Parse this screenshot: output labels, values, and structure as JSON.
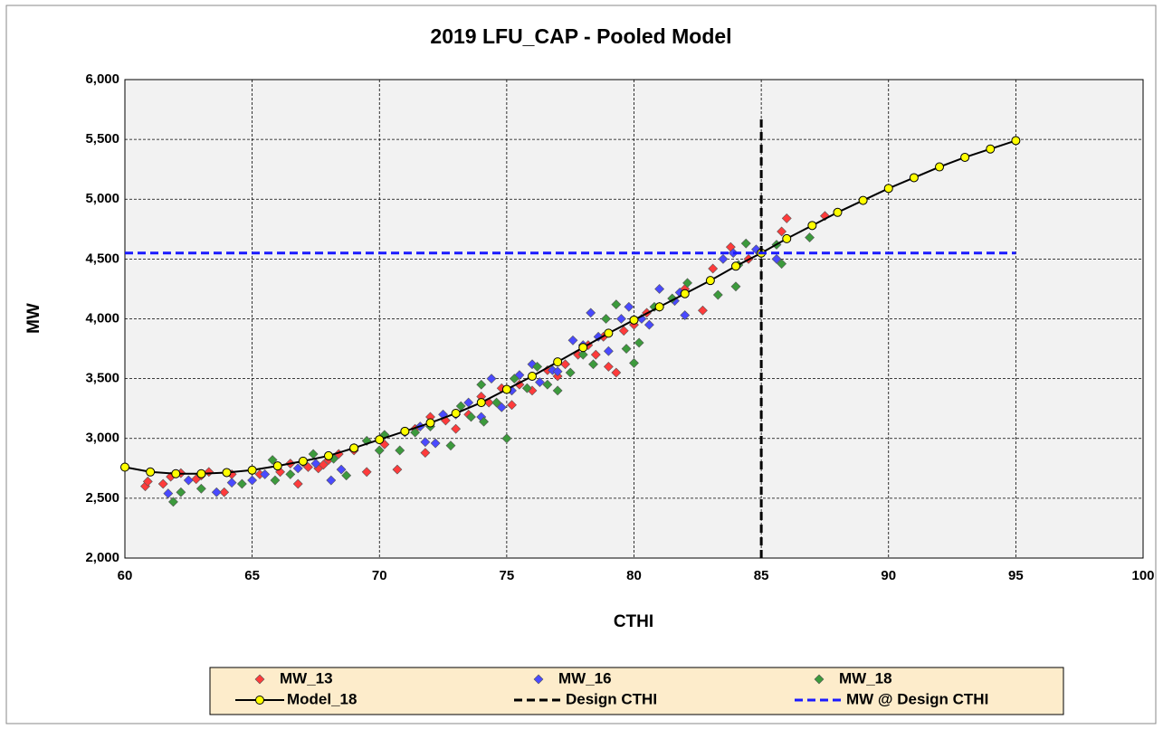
{
  "chart_data": {
    "type": "scatter",
    "title": "2019 LFU_CAP - Pooled Model",
    "x_label": "CTHI",
    "y_label": "MW",
    "xlim": [
      60,
      100
    ],
    "xticks": [
      60,
      65,
      70,
      75,
      80,
      85,
      90,
      95,
      100
    ],
    "ylim": [
      2000,
      6000
    ],
    "yticks": [
      {
        "value": 2000,
        "label": "2,000"
      },
      {
        "value": 2500,
        "label": "2,500"
      },
      {
        "value": 3000,
        "label": "3,000"
      },
      {
        "value": 3500,
        "label": "3,500"
      },
      {
        "value": 4000,
        "label": "4,000"
      },
      {
        "value": 4500,
        "label": "4,500"
      },
      {
        "value": 5000,
        "label": "5,000"
      },
      {
        "value": 5500,
        "label": "5,500"
      },
      {
        "value": 6000,
        "label": "6,000"
      }
    ],
    "grid": true,
    "legend": "bottom",
    "series": [
      {
        "name": "MW_13",
        "kind": "scatter",
        "color": "#ff3b3b",
        "x": [
          60.8,
          60.9,
          61.5,
          61.8,
          62.2,
          62.8,
          63.0,
          63.3,
          63.9,
          64.2,
          65.3,
          66.1,
          66.5,
          66.8,
          67.0,
          67.2,
          67.6,
          67.8,
          68.0,
          68.4,
          69.0,
          69.5,
          70.2,
          70.7,
          71.4,
          71.8,
          72.0,
          72.6,
          73.0,
          73.5,
          74.0,
          74.3,
          74.8,
          75.2,
          75.5,
          76.0,
          76.6,
          77.0,
          77.3,
          77.8,
          78.2,
          78.5,
          78.8,
          79.0,
          79.3,
          79.6,
          80.0,
          80.5,
          81.0,
          82.0,
          82.7,
          83.1,
          83.8,
          84.5,
          85.8,
          86.0,
          87.5
        ],
        "values": [
          2600,
          2640,
          2620,
          2680,
          2710,
          2660,
          2690,
          2720,
          2550,
          2700,
          2700,
          2720,
          2790,
          2620,
          2800,
          2760,
          2750,
          2780,
          2820,
          2870,
          2900,
          2720,
          2950,
          2740,
          3080,
          2880,
          3180,
          3150,
          3080,
          3200,
          3350,
          3300,
          3420,
          3280,
          3450,
          3400,
          3570,
          3520,
          3620,
          3700,
          3780,
          3700,
          3850,
          3600,
          3550,
          3900,
          3950,
          4050,
          4100,
          4250,
          4070,
          4420,
          4600,
          4500,
          4730,
          4840,
          4860
        ]
      },
      {
        "name": "MW_16",
        "kind": "scatter",
        "color": "#4a4aff",
        "x": [
          61.7,
          62.5,
          63.6,
          64.2,
          65.0,
          65.5,
          66.8,
          67.5,
          68.1,
          68.5,
          69.0,
          71.0,
          71.6,
          71.8,
          72.2,
          72.5,
          73.0,
          73.5,
          74.0,
          74.4,
          74.8,
          75.2,
          75.5,
          76.0,
          76.3,
          76.8,
          77.0,
          77.6,
          78.0,
          78.3,
          78.6,
          79.0,
          79.5,
          79.8,
          80.3,
          80.6,
          81.0,
          81.6,
          81.8,
          82.0,
          83.5,
          83.9,
          84.8,
          85.6
        ],
        "values": [
          2540,
          2650,
          2550,
          2630,
          2650,
          2700,
          2750,
          2790,
          2650,
          2740,
          2920,
          3050,
          3100,
          2970,
          2960,
          3200,
          3200,
          3300,
          3180,
          3500,
          3260,
          3400,
          3530,
          3620,
          3470,
          3570,
          3560,
          3820,
          3780,
          4050,
          3850,
          3730,
          4000,
          4100,
          4000,
          3950,
          4250,
          4150,
          4220,
          4030,
          4500,
          4550,
          4580,
          4500
        ]
      },
      {
        "name": "MW_18",
        "kind": "scatter",
        "color": "#3c9a3c",
        "x": [
          61.9,
          62.2,
          63.0,
          64.6,
          65.8,
          65.9,
          66.5,
          67.4,
          68.2,
          68.7,
          69.5,
          70.0,
          70.2,
          70.8,
          71.4,
          72.0,
          72.8,
          73.2,
          73.6,
          74.0,
          74.1,
          74.6,
          75.0,
          75.3,
          75.8,
          76.2,
          76.6,
          77.0,
          77.5,
          78.0,
          78.4,
          78.9,
          79.3,
          79.7,
          80.0,
          80.2,
          80.8,
          81.5,
          82.1,
          83.3,
          84.0,
          84.1,
          84.4,
          85.6,
          85.8,
          86.9
        ],
        "values": [
          2470,
          2550,
          2580,
          2620,
          2820,
          2650,
          2700,
          2870,
          2830,
          2690,
          2980,
          2900,
          3030,
          2900,
          3050,
          3100,
          2940,
          3270,
          3180,
          3450,
          3140,
          3300,
          3000,
          3500,
          3420,
          3600,
          3450,
          3400,
          3550,
          3700,
          3620,
          4000,
          4120,
          3750,
          3630,
          3800,
          4100,
          4170,
          4300,
          4200,
          4270,
          4450,
          4630,
          4620,
          4460,
          4680
        ]
      },
      {
        "name": "Model_18",
        "kind": "model",
        "color": "#000000",
        "marker_color": "#ffff00",
        "x": [
          60,
          61,
          62,
          63,
          64,
          65,
          66,
          67,
          68,
          69,
          70,
          71,
          72,
          73,
          74,
          75,
          76,
          77,
          78,
          79,
          80,
          81,
          82,
          83,
          84,
          85,
          86,
          87,
          88,
          89,
          90,
          91,
          92,
          93,
          94,
          95
        ],
        "values": [
          2760,
          2720,
          2705,
          2705,
          2715,
          2735,
          2770,
          2810,
          2855,
          2920,
          2990,
          3060,
          3130,
          3210,
          3300,
          3410,
          3520,
          3640,
          3760,
          3880,
          3990,
          4100,
          4210,
          4320,
          4440,
          4550,
          4670,
          4780,
          4890,
          4990,
          5090,
          5180,
          5270,
          5350,
          5420,
          5490
        ]
      },
      {
        "name": "Design CTHI",
        "kind": "dashed",
        "color": "#000000",
        "x": [
          85,
          85
        ],
        "values": [
          2000,
          5700
        ]
      },
      {
        "name": "MW @ Design CTHI",
        "kind": "dashed",
        "color": "#1a1aff",
        "x": [
          60,
          95
        ],
        "values": [
          4550,
          4550
        ]
      }
    ]
  }
}
